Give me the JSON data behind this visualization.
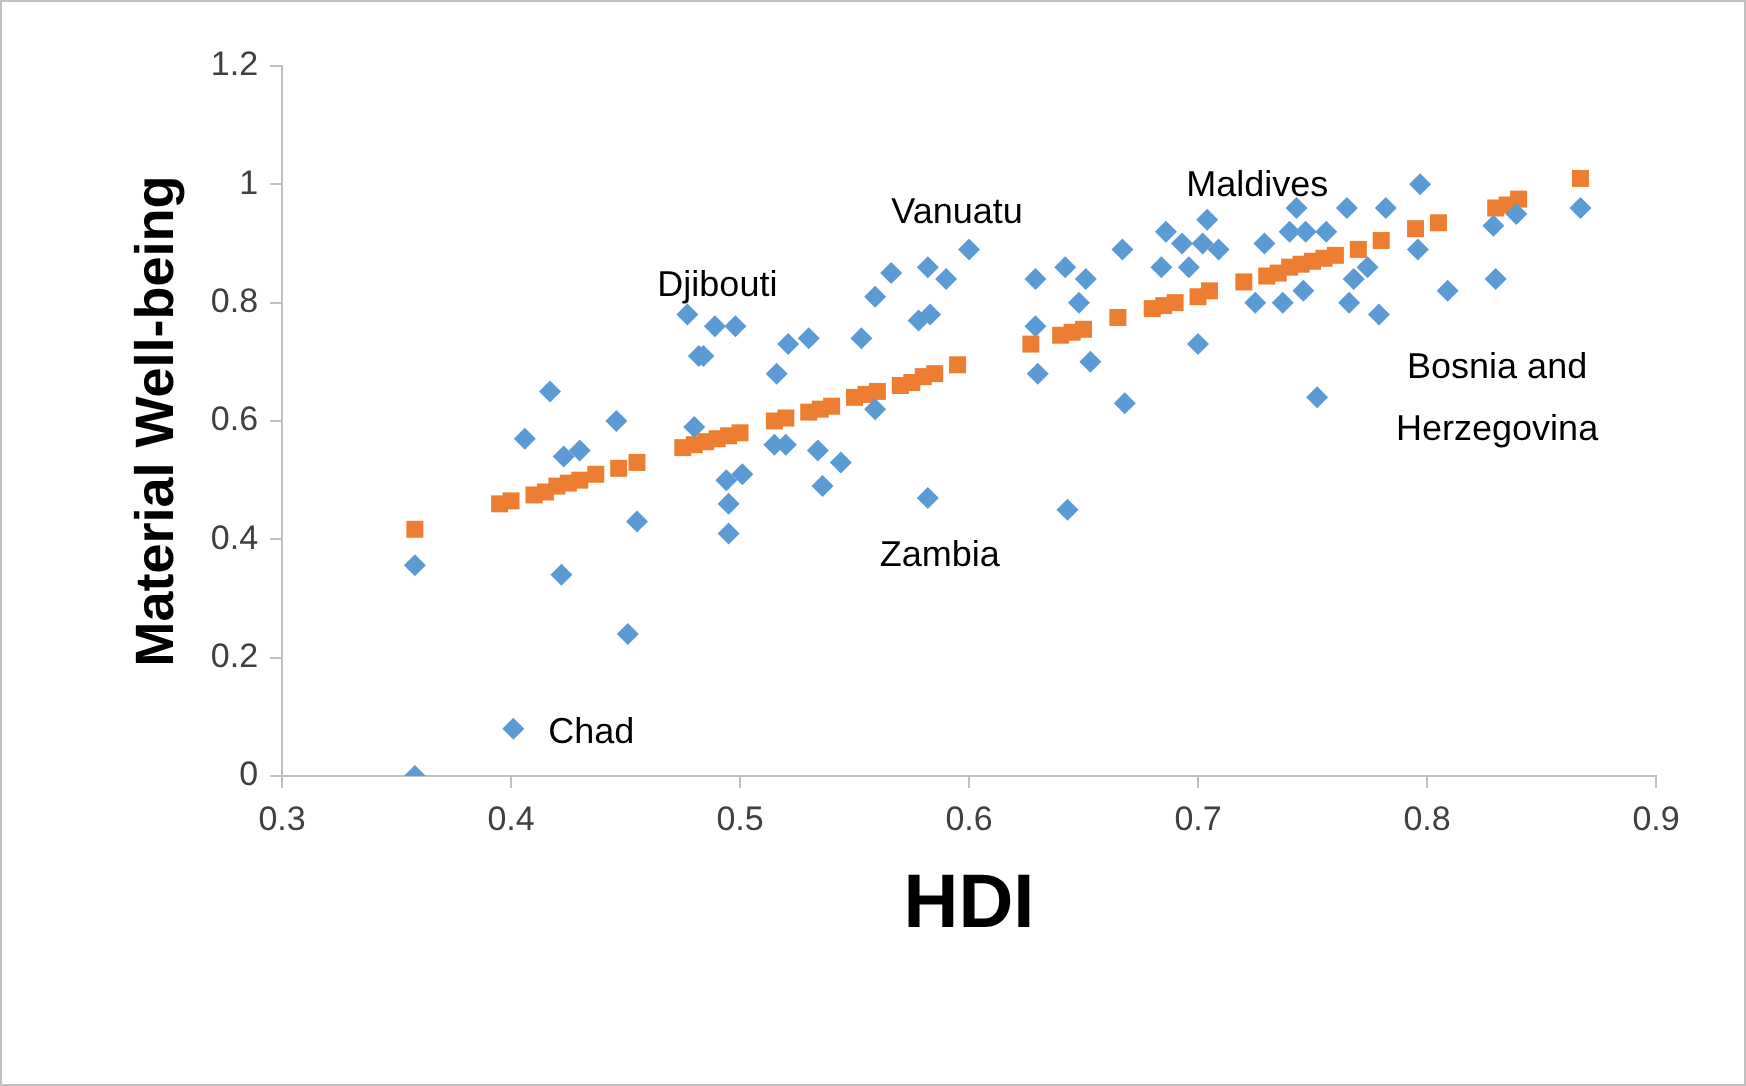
{
  "chart_data": {
    "type": "scatter",
    "xlabel": "HDI",
    "ylabel": "Material Well-being",
    "xlim": [
      0.3,
      0.9
    ],
    "xticks": [
      0.3,
      0.4,
      0.5,
      0.6,
      0.7,
      0.8,
      0.9
    ],
    "ylim": [
      0,
      1.2
    ],
    "yticks": [
      0,
      0.2,
      0.4,
      0.6,
      0.8,
      1,
      1.2
    ],
    "grid": false,
    "legend": false,
    "series": [
      {
        "color": "#5b9bd5",
        "marker": "diamond",
        "x": [
          0.358,
          0.358,
          0.401,
          0.482,
          0.417,
          0.406,
          0.446,
          0.423,
          0.43,
          0.48,
          0.494,
          0.501,
          0.495,
          0.495,
          0.422,
          0.455,
          0.451,
          0.477,
          0.489,
          0.498,
          0.484,
          0.521,
          0.53,
          0.516,
          0.553,
          0.559,
          0.566,
          0.582,
          0.59,
          0.6,
          0.578,
          0.583,
          0.629,
          0.642,
          0.651,
          0.648,
          0.629,
          0.63,
          0.653,
          0.515,
          0.52,
          0.559,
          0.534,
          0.544,
          0.536,
          0.582,
          0.643,
          0.667,
          0.668,
          0.684,
          0.686,
          0.693,
          0.696,
          0.702,
          0.704,
          0.709,
          0.7,
          0.725,
          0.729,
          0.737,
          0.743,
          0.74,
          0.747,
          0.746,
          0.752,
          0.756,
          0.765,
          0.774,
          0.768,
          0.766,
          0.779,
          0.782,
          0.797,
          0.796,
          0.809,
          0.83,
          0.829,
          0.839,
          0.867
        ],
        "values": [
          0.356,
          0,
          0.08,
          0.71,
          0.65,
          0.57,
          0.6,
          0.54,
          0.55,
          0.59,
          0.5,
          0.51,
          0.46,
          0.41,
          0.34,
          0.43,
          0.24,
          0.78,
          0.76,
          0.76,
          0.71,
          0.73,
          0.74,
          0.68,
          0.74,
          0.81,
          0.85,
          0.86,
          0.84,
          0.89,
          0.77,
          0.78,
          0.84,
          0.86,
          0.84,
          0.8,
          0.76,
          0.68,
          0.7,
          0.56,
          0.56,
          0.62,
          0.55,
          0.53,
          0.49,
          0.47,
          0.45,
          0.89,
          0.63,
          0.86,
          0.92,
          0.9,
          0.86,
          0.9,
          0.94,
          0.89,
          0.73,
          0.8,
          0.9,
          0.8,
          0.96,
          0.92,
          0.92,
          0.82,
          0.64,
          0.92,
          0.96,
          0.86,
          0.84,
          0.8,
          0.78,
          0.96,
          1,
          0.89,
          0.82,
          0.84,
          0.93,
          0.95,
          0.96
        ]
      },
      {
        "color": "#ed7d31",
        "marker": "square",
        "x": [
          0.358,
          0.395,
          0.4,
          0.41,
          0.415,
          0.42,
          0.425,
          0.43,
          0.437,
          0.447,
          0.455,
          0.475,
          0.48,
          0.485,
          0.49,
          0.495,
          0.5,
          0.515,
          0.52,
          0.53,
          0.535,
          0.54,
          0.55,
          0.555,
          0.56,
          0.57,
          0.575,
          0.58,
          0.585,
          0.595,
          0.627,
          0.64,
          0.645,
          0.65,
          0.665,
          0.68,
          0.685,
          0.69,
          0.7,
          0.705,
          0.72,
          0.73,
          0.735,
          0.74,
          0.745,
          0.75,
          0.755,
          0.76,
          0.77,
          0.78,
          0.795,
          0.805,
          0.83,
          0.835,
          0.84,
          0.867
        ],
        "values": [
          0.417,
          0.46,
          0.465,
          0.475,
          0.48,
          0.49,
          0.495,
          0.5,
          0.51,
          0.52,
          0.53,
          0.555,
          0.56,
          0.565,
          0.57,
          0.575,
          0.58,
          0.6,
          0.605,
          0.615,
          0.62,
          0.625,
          0.64,
          0.645,
          0.65,
          0.66,
          0.665,
          0.675,
          0.68,
          0.695,
          0.73,
          0.745,
          0.75,
          0.755,
          0.775,
          0.79,
          0.795,
          0.8,
          0.81,
          0.82,
          0.835,
          0.845,
          0.85,
          0.86,
          0.865,
          0.87,
          0.875,
          0.88,
          0.89,
          0.905,
          0.925,
          0.935,
          0.96,
          0.965,
          0.975,
          1.01
        ]
      }
    ],
    "annotations": [
      {
        "text": "Chad",
        "x": 0.401,
        "y": 0.08
      },
      {
        "text": "Djibouti",
        "x": 0.477,
        "y": 0.78
      },
      {
        "text": "Vanuatu",
        "x": 0.6,
        "y": 0.89
      },
      {
        "text": "Maldives",
        "x": 0.704,
        "y": 0.94
      },
      {
        "text": "Zambia",
        "x": 0.582,
        "y": 0.47
      },
      {
        "text": "Bosnia and Herzegovina",
        "x": 0.752,
        "y": 0.64
      }
    ]
  }
}
